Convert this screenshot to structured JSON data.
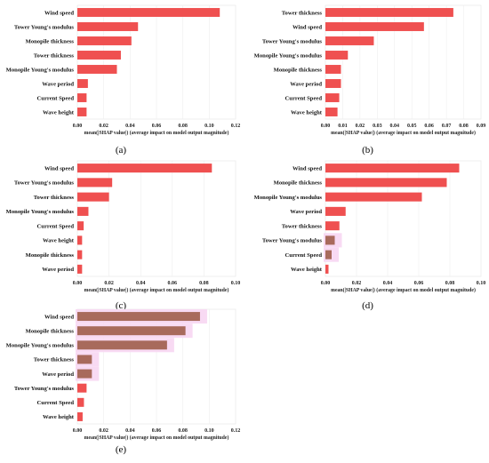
{
  "colors": {
    "bar": "#ef5050",
    "bar_muted": "#a86a5c",
    "glow": "#f7d6f2"
  },
  "chart_data": [
    {
      "type": "bar",
      "orientation": "horizontal",
      "panel_label": "(a)",
      "categories": [
        "Wind speed",
        "Tower Young's modulus",
        "Monopile thickness",
        "Tower thickness",
        "Monopile Young's modulus",
        "Wave period",
        "Current Speed",
        "Wave height"
      ],
      "values": [
        0.108,
        0.046,
        0.041,
        0.033,
        0.03,
        0.008,
        0.007,
        0.007
      ],
      "xlabel": "mean(|SHAP value|) (average impact on model output magnitude)",
      "xticks": [
        "0.00",
        "0.02",
        "0.04",
        "0.06",
        "0.08",
        "0.10",
        "0.12"
      ],
      "xlim": [
        0,
        0.12
      ],
      "highlight": [
        false,
        false,
        false,
        false,
        false,
        false,
        false,
        false
      ]
    },
    {
      "type": "bar",
      "orientation": "horizontal",
      "panel_label": "(b)",
      "categories": [
        "Tower thickness",
        "Wind speed",
        "Tower Young's modulus",
        "Monopile Young's modulus",
        "Monopile thickness",
        "Wave period",
        "Current Speed",
        "Wave height"
      ],
      "values": [
        0.074,
        0.057,
        0.028,
        0.013,
        0.009,
        0.009,
        0.008,
        0.007
      ],
      "xlabel": "mean(|SHAP value|) (average impact on model output magnitude)",
      "xticks": [
        "0.00",
        "0.01",
        "0.02",
        "0.03",
        "0.04",
        "0.05",
        "0.06",
        "0.07",
        "0.08",
        "0.09"
      ],
      "xlim": [
        0,
        0.09
      ],
      "highlight": [
        false,
        false,
        false,
        false,
        false,
        false,
        false,
        false
      ]
    },
    {
      "type": "bar",
      "orientation": "horizontal",
      "panel_label": "(c)",
      "categories": [
        "Wind speed",
        "Tower Young's modulus",
        "Tower thickness",
        "Monopile Young's modulus",
        "Current Speed",
        "Wave height",
        "Monopile thickness",
        "Wave period"
      ],
      "values": [
        0.085,
        0.022,
        0.02,
        0.007,
        0.004,
        0.003,
        0.003,
        0.003
      ],
      "xlabel": "mean(|SHAP value|) (average impact on model output magnitude)",
      "xticks": [
        "0.00",
        "0.02",
        "0.04",
        "0.06",
        "0.08",
        "0.10"
      ],
      "xlim": [
        0,
        0.1
      ],
      "highlight": [
        false,
        false,
        false,
        false,
        false,
        false,
        false,
        false
      ]
    },
    {
      "type": "bar",
      "orientation": "horizontal",
      "panel_label": "(d)",
      "categories": [
        "Wind speed",
        "Monopile thickness",
        "Monopile Young's modulus",
        "Wave period",
        "Tower thickness",
        "Tower Young's modulus",
        "Current Speed",
        "Wave height"
      ],
      "values": [
        0.086,
        0.078,
        0.062,
        0.013,
        0.009,
        0.006,
        0.004,
        0.002
      ],
      "xlabel": "mean(|SHAP value|) (average impact on model output magnitude)",
      "xticks": [
        "0.00",
        "0.02",
        "0.04",
        "0.06",
        "0.08",
        "0.10"
      ],
      "xlim": [
        0,
        0.1
      ],
      "highlight": [
        false,
        false,
        false,
        false,
        false,
        true,
        true,
        false
      ]
    },
    {
      "type": "bar",
      "orientation": "horizontal",
      "panel_label": "(e)",
      "categories": [
        "Wind speed",
        "Monopile thickness",
        "Monopile Young's modulus",
        "Tower thickness",
        "Wave period",
        "Tower Young's modulus",
        "Current Speed",
        "Wave height"
      ],
      "values": [
        0.093,
        0.082,
        0.068,
        0.011,
        0.011,
        0.007,
        0.005,
        0.004
      ],
      "xlabel": "mean(|SHAP value|) (average impact on model output magnitude)",
      "xticks": [
        "0.00",
        "0.02",
        "0.04",
        "0.06",
        "0.08",
        "0.10",
        "0.12"
      ],
      "xlim": [
        0,
        0.12
      ],
      "highlight": [
        true,
        true,
        true,
        true,
        true,
        false,
        false,
        false
      ]
    }
  ]
}
